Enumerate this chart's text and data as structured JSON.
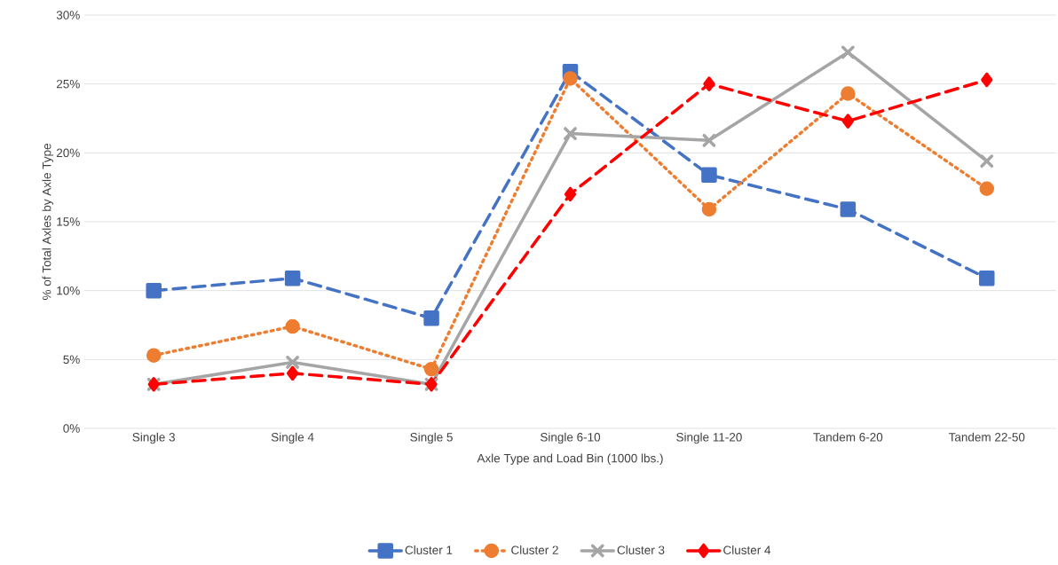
{
  "chart_data": {
    "type": "line",
    "xlabel": "Axle Type and Load Bin (1000 lbs.)",
    "ylabel": "% of Total Axles by Axle Type",
    "categories": [
      "Single 3",
      "Single 4",
      "Single 5",
      "Single 6-10",
      "Single 11-20",
      "Tandem 6-20",
      "Tandem 22-50"
    ],
    "series": [
      {
        "name": "Cluster 1",
        "color": "#4472c4",
        "marker": "square",
        "line_style": "dashed",
        "values": [
          10.0,
          10.9,
          8.0,
          25.9,
          18.4,
          15.9,
          10.9
        ]
      },
      {
        "name": "Cluster 2",
        "color": "#ed7d31",
        "marker": "circle",
        "line_style": "dotted",
        "values": [
          5.3,
          7.4,
          4.3,
          25.4,
          15.9,
          24.3,
          17.4
        ]
      },
      {
        "name": "Cluster 3",
        "color": "#a5a5a5",
        "marker": "cross",
        "line_style": "solid",
        "values": [
          3.2,
          4.8,
          3.2,
          21.4,
          20.9,
          27.3,
          19.4
        ]
      },
      {
        "name": "Cluster 4",
        "color": "#ff0000",
        "marker": "diamond",
        "line_style": "dashed",
        "values": [
          3.2,
          4.0,
          3.2,
          17.0,
          25.0,
          22.3,
          25.3
        ]
      }
    ],
    "ylim": [
      0,
      30
    ],
    "yticks": [
      {
        "value": 0,
        "label": "0%"
      },
      {
        "value": 5,
        "label": "5%"
      },
      {
        "value": 10,
        "label": "10%"
      },
      {
        "value": 15,
        "label": "15%"
      },
      {
        "value": 20,
        "label": "20%"
      },
      {
        "value": 25,
        "label": "25%"
      },
      {
        "value": 30,
        "label": "30%"
      }
    ],
    "grid": "y",
    "legend": "bottom"
  }
}
